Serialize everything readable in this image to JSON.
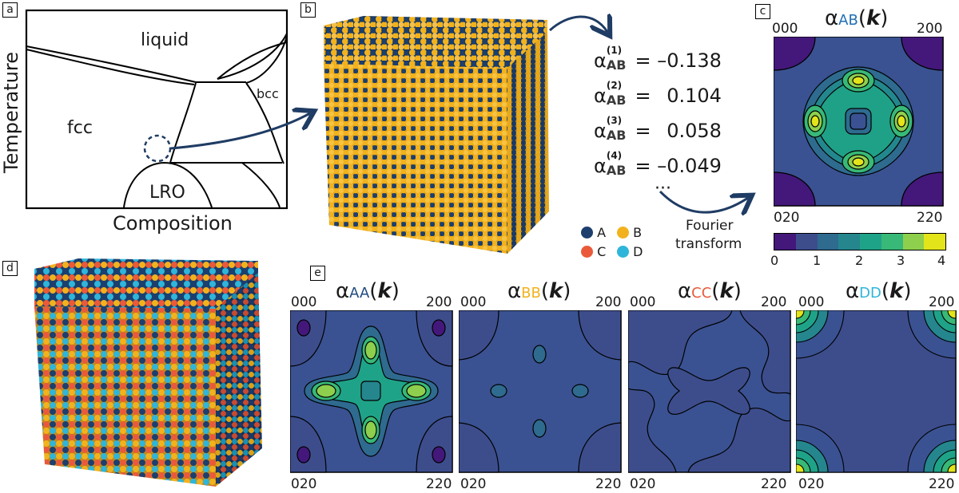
{
  "panels": {
    "a": "a",
    "b": "b",
    "c": "c",
    "d": "d",
    "e": "e"
  },
  "phase_diagram": {
    "xlabel": "Composition",
    "ylabel": "Temperature",
    "regions": {
      "liquid": "liquid",
      "fcc": "fcc",
      "bcc": "bcc",
      "lro": "LRO"
    }
  },
  "alpha": {
    "symbol": "α",
    "lines": [
      {
        "order": "(1)",
        "sub": "AB",
        "eq": "=",
        "value": "–0.138"
      },
      {
        "order": "(2)",
        "sub": "AB",
        "eq": "=",
        "value": "0.104"
      },
      {
        "order": "(3)",
        "sub": "AB",
        "eq": "=",
        "value": "0.058"
      },
      {
        "order": "(4)",
        "sub": "AB",
        "eq": "=",
        "value": "–0.049"
      }
    ],
    "ellipsis": "···"
  },
  "fourier": {
    "line1": "Fourier",
    "line2": "transform"
  },
  "legend": [
    {
      "label": "A",
      "color": "#1c3f6e"
    },
    {
      "label": "B",
      "color": "#f2b21d"
    },
    {
      "label": "C",
      "color": "#ea5a3a"
    },
    {
      "label": "D",
      "color": "#2fb5d9"
    }
  ],
  "maps": {
    "ab": {
      "title_main": "α",
      "sub": "AB",
      "k": "k"
    },
    "aa": {
      "title_main": "α",
      "sub": "AA",
      "k": "k"
    },
    "bb": {
      "title_main": "α",
      "sub": "BB",
      "k": "k"
    },
    "cc": {
      "title_main": "α",
      "sub": "CC",
      "k": "k"
    },
    "dd": {
      "title_main": "α",
      "sub": "DD",
      "k": "k"
    }
  },
  "corners": {
    "tl": "000",
    "tr": "200",
    "bl": "020",
    "br": "220"
  },
  "colorbar": {
    "ticks": [
      "0",
      "1",
      "2",
      "3",
      "4"
    ],
    "colors": [
      "#43187a",
      "#3d4d8c",
      "#2f6a8f",
      "#25868e",
      "#1fa388",
      "#38b977",
      "#8ecf4e",
      "#e3e41a"
    ]
  },
  "colors": {
    "accent": "#1f3c64"
  }
}
